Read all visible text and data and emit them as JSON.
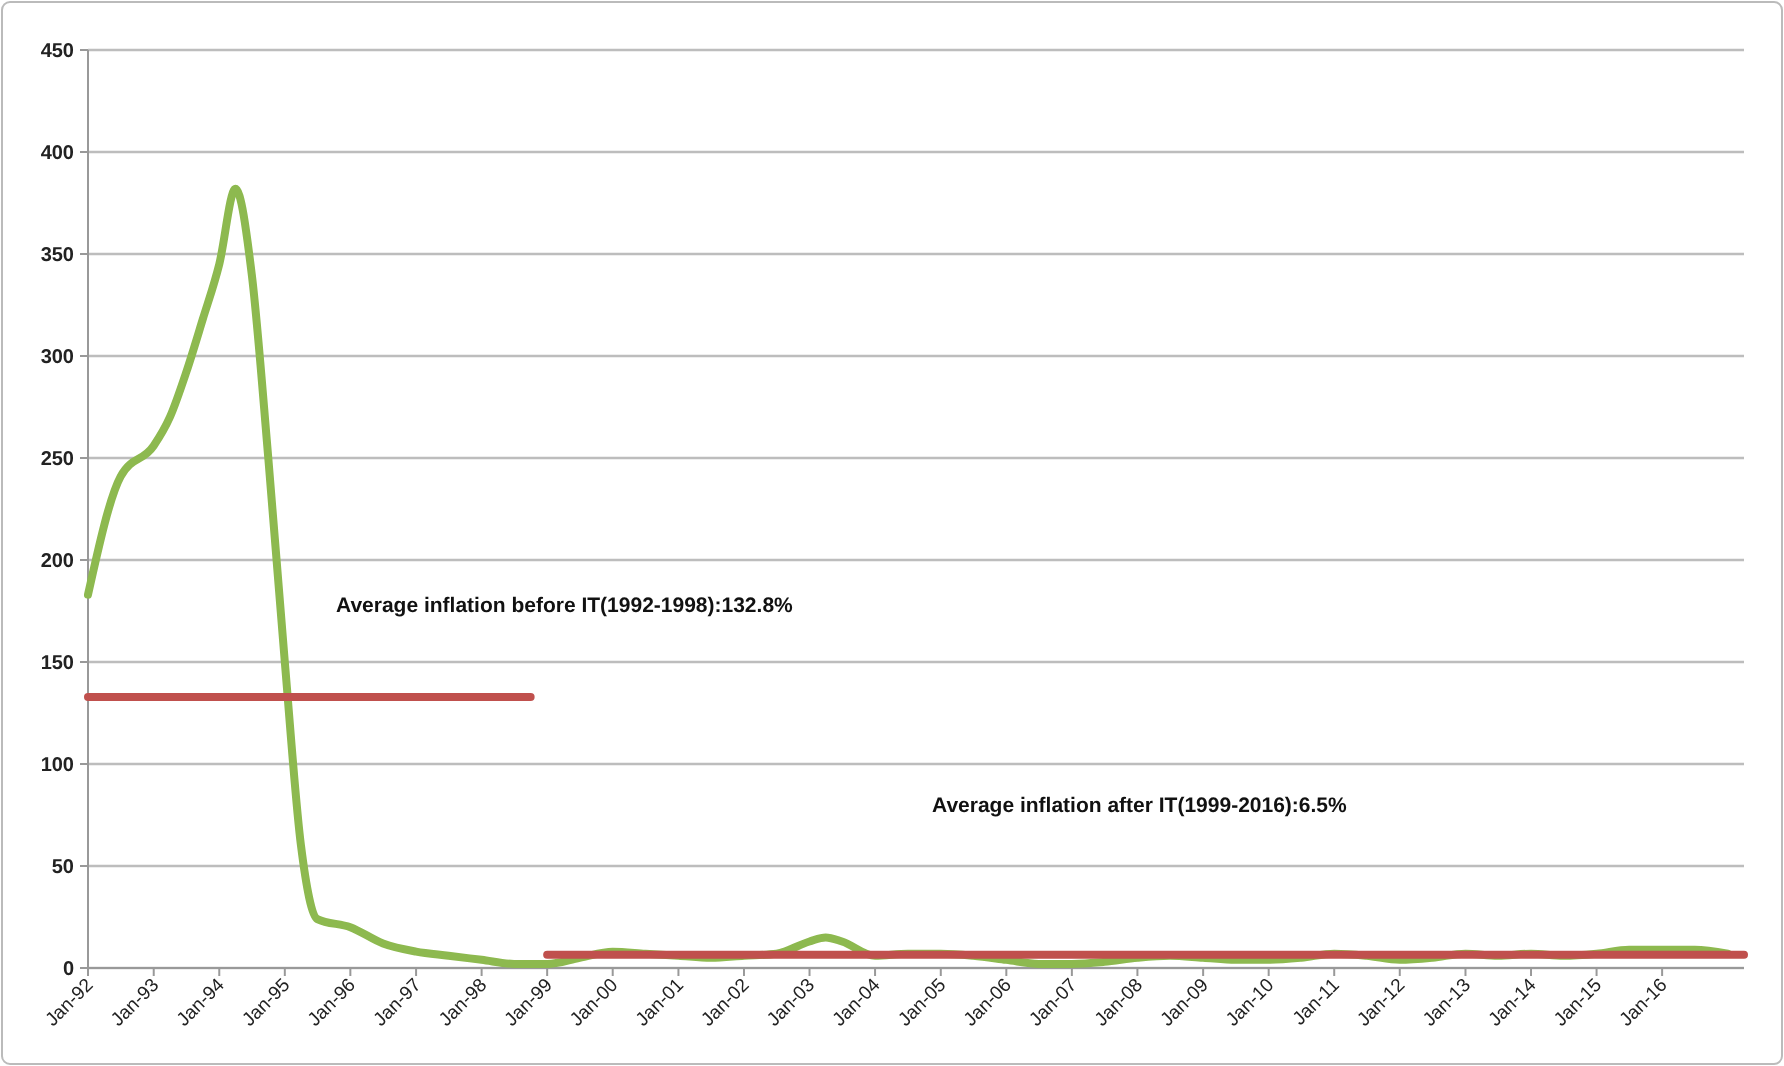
{
  "chart_data": {
    "type": "line",
    "xlim": [
      "1992-01",
      "2017-04"
    ],
    "xticks": [
      {
        "value": "1992-01",
        "label": "Jan-92"
      },
      {
        "value": "1993-01",
        "label": "Jan-93"
      },
      {
        "value": "1994-01",
        "label": "Jan-94"
      },
      {
        "value": "1995-01",
        "label": "Jan-95"
      },
      {
        "value": "1996-01",
        "label": "Jan-96"
      },
      {
        "value": "1997-01",
        "label": "Jan-97"
      },
      {
        "value": "1998-01",
        "label": "Jan-98"
      },
      {
        "value": "1999-01",
        "label": "Jan-99"
      },
      {
        "value": "2000-01",
        "label": "Jan-00"
      },
      {
        "value": "2001-01",
        "label": "Jan-01"
      },
      {
        "value": "2002-01",
        "label": "Jan-02"
      },
      {
        "value": "2003-01",
        "label": "Jan-03"
      },
      {
        "value": "2004-01",
        "label": "Jan-04"
      },
      {
        "value": "2005-01",
        "label": "Jan-05"
      },
      {
        "value": "2006-01",
        "label": "Jan-06"
      },
      {
        "value": "2007-01",
        "label": "Jan-07"
      },
      {
        "value": "2008-01",
        "label": "Jan-08"
      },
      {
        "value": "2009-01",
        "label": "Jan-09"
      },
      {
        "value": "2010-01",
        "label": "Jan-10"
      },
      {
        "value": "2011-01",
        "label": "Jan-11"
      },
      {
        "value": "2012-01",
        "label": "Jan-12"
      },
      {
        "value": "2013-01",
        "label": "Jan-13"
      },
      {
        "value": "2014-01",
        "label": "Jan-14"
      },
      {
        "value": "2015-01",
        "label": "Jan-15"
      },
      {
        "value": "2016-01",
        "label": "Jan-16"
      }
    ],
    "ylim": [
      0,
      450
    ],
    "yticks": [
      0,
      50,
      100,
      150,
      200,
      250,
      300,
      350,
      400,
      450
    ],
    "grid": "y",
    "marker": "none",
    "line_style": "solid",
    "series": [
      {
        "color": "#8db94f",
        "x": [
          "1992-01",
          "1992-07",
          "1993-01",
          "1993-04",
          "1993-07",
          "1993-10",
          "1994-01",
          "1994-04",
          "1994-07",
          "1994-10",
          "1995-01",
          "1995-04",
          "1995-07",
          "1996-01",
          "1996-07",
          "1997-01",
          "1997-07",
          "1998-01",
          "1998-07",
          "1999-01",
          "1999-07",
          "2000-01",
          "2000-07",
          "2001-01",
          "2001-07",
          "2002-01",
          "2002-07",
          "2003-01",
          "2003-04",
          "2003-07",
          "2004-01",
          "2004-07",
          "2005-01",
          "2005-07",
          "2006-01",
          "2006-07",
          "2007-01",
          "2007-07",
          "2008-01",
          "2008-07",
          "2009-01",
          "2009-07",
          "2010-01",
          "2010-07",
          "2011-01",
          "2011-07",
          "2012-01",
          "2012-07",
          "2013-01",
          "2013-07",
          "2014-01",
          "2014-07",
          "2015-01",
          "2015-07",
          "2016-01",
          "2016-07",
          "2017-01"
        ],
        "values": [
          183,
          241,
          256,
          270,
          292,
          318,
          345,
          382,
          340,
          250,
          150,
          60,
          24,
          20,
          12,
          8,
          6,
          4,
          2,
          2,
          5,
          8,
          7,
          6,
          5,
          6,
          7,
          13,
          15,
          13,
          6,
          7,
          7,
          6,
          4,
          2,
          2,
          3,
          5,
          6,
          5,
          4,
          4,
          5,
          7,
          6,
          4,
          5,
          7,
          6,
          7,
          6,
          7,
          9,
          9,
          9,
          7
        ]
      },
      {
        "color": "#c0504d",
        "x": [
          "1992-01",
          "1998-10"
        ],
        "values": [
          132.8,
          132.8
        ]
      },
      {
        "color": "#c0504d",
        "x": [
          "1999-01",
          "2017-04"
        ],
        "values": [
          6.5,
          6.5
        ]
      }
    ],
    "annotations": [
      "Average inflation before IT(1992-1998):132.8%",
      "Average inflation after IT(1999-2016):6.5%"
    ]
  }
}
